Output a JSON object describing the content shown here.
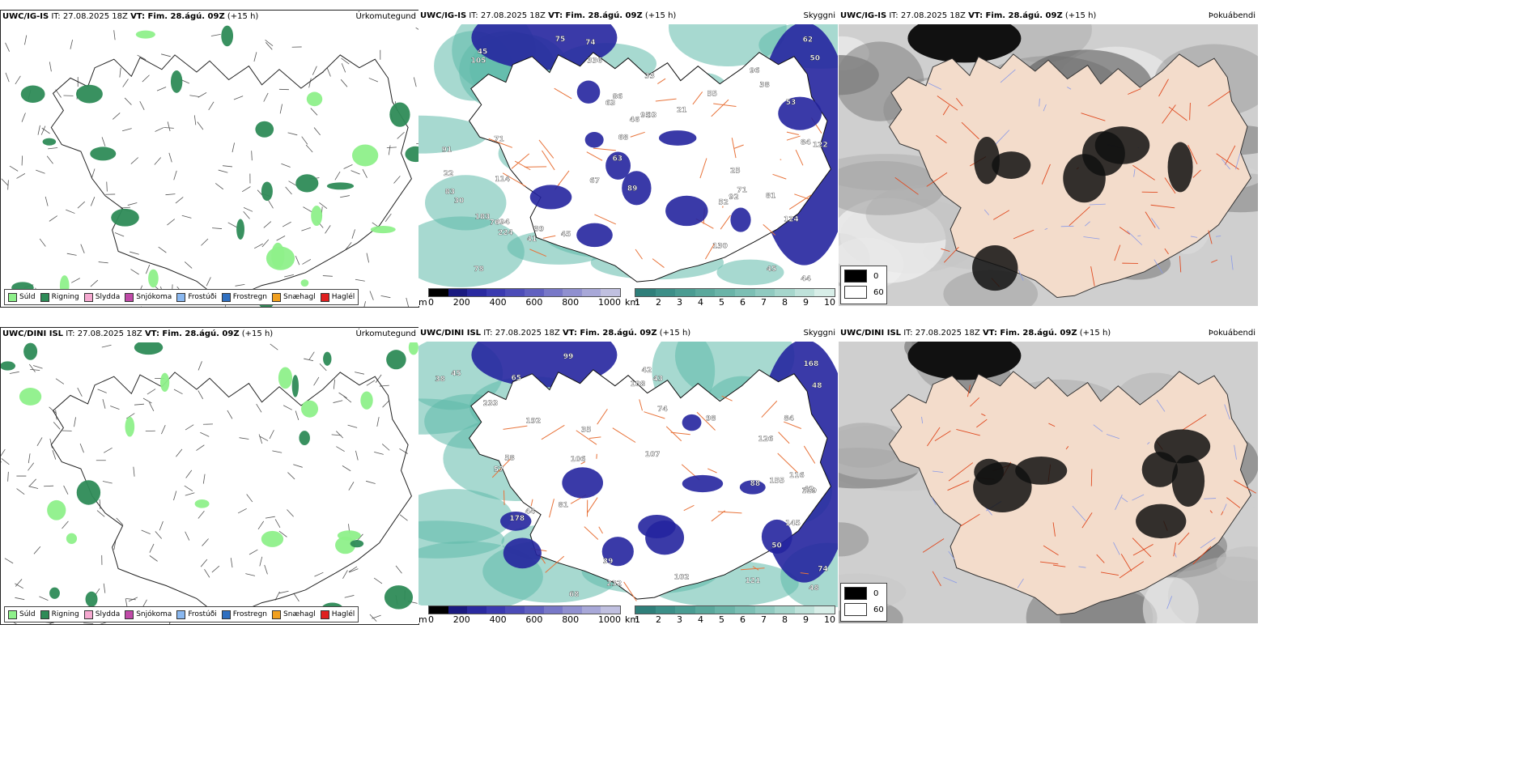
{
  "colors": {
    "sea_green": "#5fb9a9",
    "deep_blue": "#25259e",
    "land_tan": "#f3dccb",
    "road": "#e8733a",
    "cloud_dark": "#111111"
  },
  "rows": [
    {
      "precip": {
        "model": "UWC/IG-IS",
        "it": "IT: 27.08.2025 18Z",
        "vt": "VT: Fim. 28.ágú. 09Z",
        "lead": "(+15 h)",
        "title": "Úrkomutegund"
      },
      "vis": {
        "model": "UWC/IG-IS",
        "it": "IT: 27.08.2025 18Z",
        "vt": "VT: Fim. 28.ágú. 09Z",
        "lead": "(+15 h)",
        "title": "Skyggni",
        "labels": [
          "114",
          "81",
          "94",
          "183",
          "76",
          "50",
          "75",
          "55",
          "130",
          "63",
          "68",
          "52",
          "124",
          "71",
          "122",
          "92",
          "93",
          "71",
          "83",
          "84",
          "45",
          "86",
          "44",
          "46",
          "95",
          "41",
          "22",
          "21",
          "78",
          "25",
          "30",
          "62",
          "53",
          "89",
          "91",
          "67",
          "39",
          "45",
          "96",
          "38",
          "105",
          "74",
          "63",
          "45",
          "33",
          "224",
          "336"
        ]
      },
      "cloud": {
        "model": "UWC/IG-IS",
        "it": "IT: 27.08.2025 18Z",
        "vt": "VT: Fim. 28.ágú. 09Z",
        "lead": "(+15 h)",
        "title": "Þokuábendi"
      }
    },
    {
      "precip": {
        "model": "UWC/DINI ISL",
        "it": "IT: 27.08.2025 18Z",
        "vt": "VT: Fim. 28.ágú. 09Z",
        "lead": "(+15 h)",
        "title": "Úrkomutegund"
      },
      "vis": {
        "model": "UWC/DINI ISL",
        "it": "IT: 27.08.2025 18Z",
        "vt": "VT: Fim. 28.ágú. 09Z",
        "lead": "(+15 h)",
        "title": "Skyggni",
        "labels": [
          "99",
          "168",
          "65",
          "57",
          "35",
          "102",
          "155",
          "68",
          "126",
          "178",
          "192",
          "108",
          "74",
          "58",
          "50",
          "48",
          "45",
          "106",
          "81",
          "84",
          "119",
          "121",
          "42",
          "38",
          "98",
          "88",
          "43",
          "44",
          "39",
          "232",
          "145",
          "48",
          "74",
          "107",
          "116",
          "42",
          "233"
        ]
      },
      "cloud": {
        "model": "UWC/DINI ISL",
        "it": "IT: 27.08.2025 18Z",
        "vt": "VT: Fim. 28.ágú. 09Z",
        "lead": "(+15 h)",
        "title": "Þokuábendi"
      }
    }
  ],
  "precip_legend": [
    {
      "label": "Súld",
      "color": "#8ef08a"
    },
    {
      "label": "Rigning",
      "color": "#2e8b57"
    },
    {
      "label": "Slydda",
      "color": "#f5a9d0"
    },
    {
      "label": "Snjókoma",
      "color": "#c04aa8"
    },
    {
      "label": "Frostúði",
      "color": "#8ab8f0"
    },
    {
      "label": "Frostregn",
      "color": "#2f6fc0"
    },
    {
      "label": "Snæhagl",
      "color": "#f0a020"
    },
    {
      "label": "Haglél",
      "color": "#e02020"
    }
  ],
  "vis_cbar_m": {
    "unit": "m",
    "ticks": [
      "0",
      "200",
      "400",
      "600",
      "800",
      "1000"
    ],
    "colors": [
      "#000000",
      "#1a1a80",
      "#2a2aa0",
      "#3a3ab0",
      "#4c4cb8",
      "#6060c0",
      "#7878c8",
      "#9090d0",
      "#a8a8d8",
      "#c0c0e0"
    ]
  },
  "vis_cbar_km": {
    "unit": "km",
    "ticks": [
      "1",
      "2",
      "3",
      "4",
      "5",
      "6",
      "7",
      "8",
      "9",
      "10"
    ],
    "colors": [
      "#2f7f7a",
      "#3c8f88",
      "#4a9c92",
      "#5aa89c",
      "#6ab4a8",
      "#7cbfb4",
      "#90cac0",
      "#a6d6cc",
      "#bfe2da",
      "#d8eee8"
    ]
  },
  "cloud_legend": [
    {
      "label": "0",
      "color": "#000000"
    },
    {
      "label": "60",
      "color": "#ffffff"
    }
  ]
}
